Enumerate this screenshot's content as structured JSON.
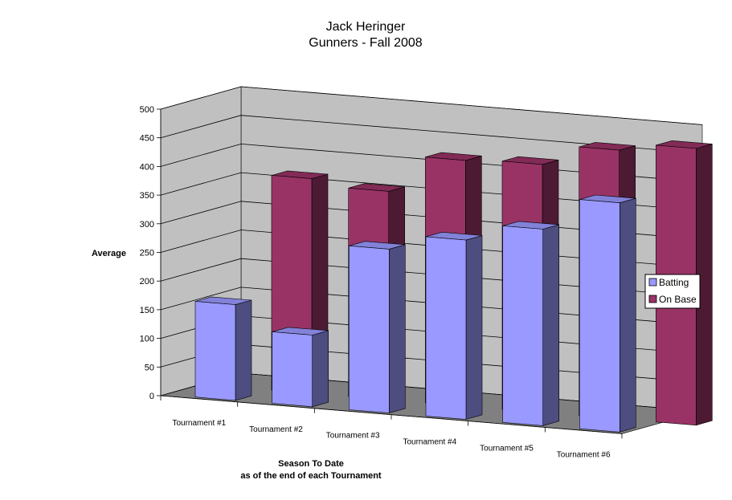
{
  "chart_data": {
    "type": "bar",
    "title": "Jack Heringer",
    "subtitle": "Gunners - Fall 2008",
    "ylabel": "Average",
    "xlabel": "Season To Date",
    "xlabel2": "as of the end of each Tournament",
    "categories": [
      "Tournament #1",
      "Tournament #2",
      "Tournament #3",
      "Tournament #4",
      "Tournament #5",
      "Tournament #6"
    ],
    "series": [
      {
        "name": "Batting",
        "values": [
          167,
          125,
          286,
          313,
          343,
          400
        ],
        "color": "#9999ff"
      },
      {
        "name": "On Base",
        "values": [
          375,
          364,
          429,
          433,
          469,
          483
        ],
        "color": "#993366"
      }
    ],
    "ylim": [
      0,
      500
    ],
    "yticks": [
      0,
      50,
      100,
      150,
      200,
      250,
      300,
      350,
      400,
      450,
      500
    ],
    "grid": true,
    "legend": "right",
    "style": "3d-column"
  }
}
